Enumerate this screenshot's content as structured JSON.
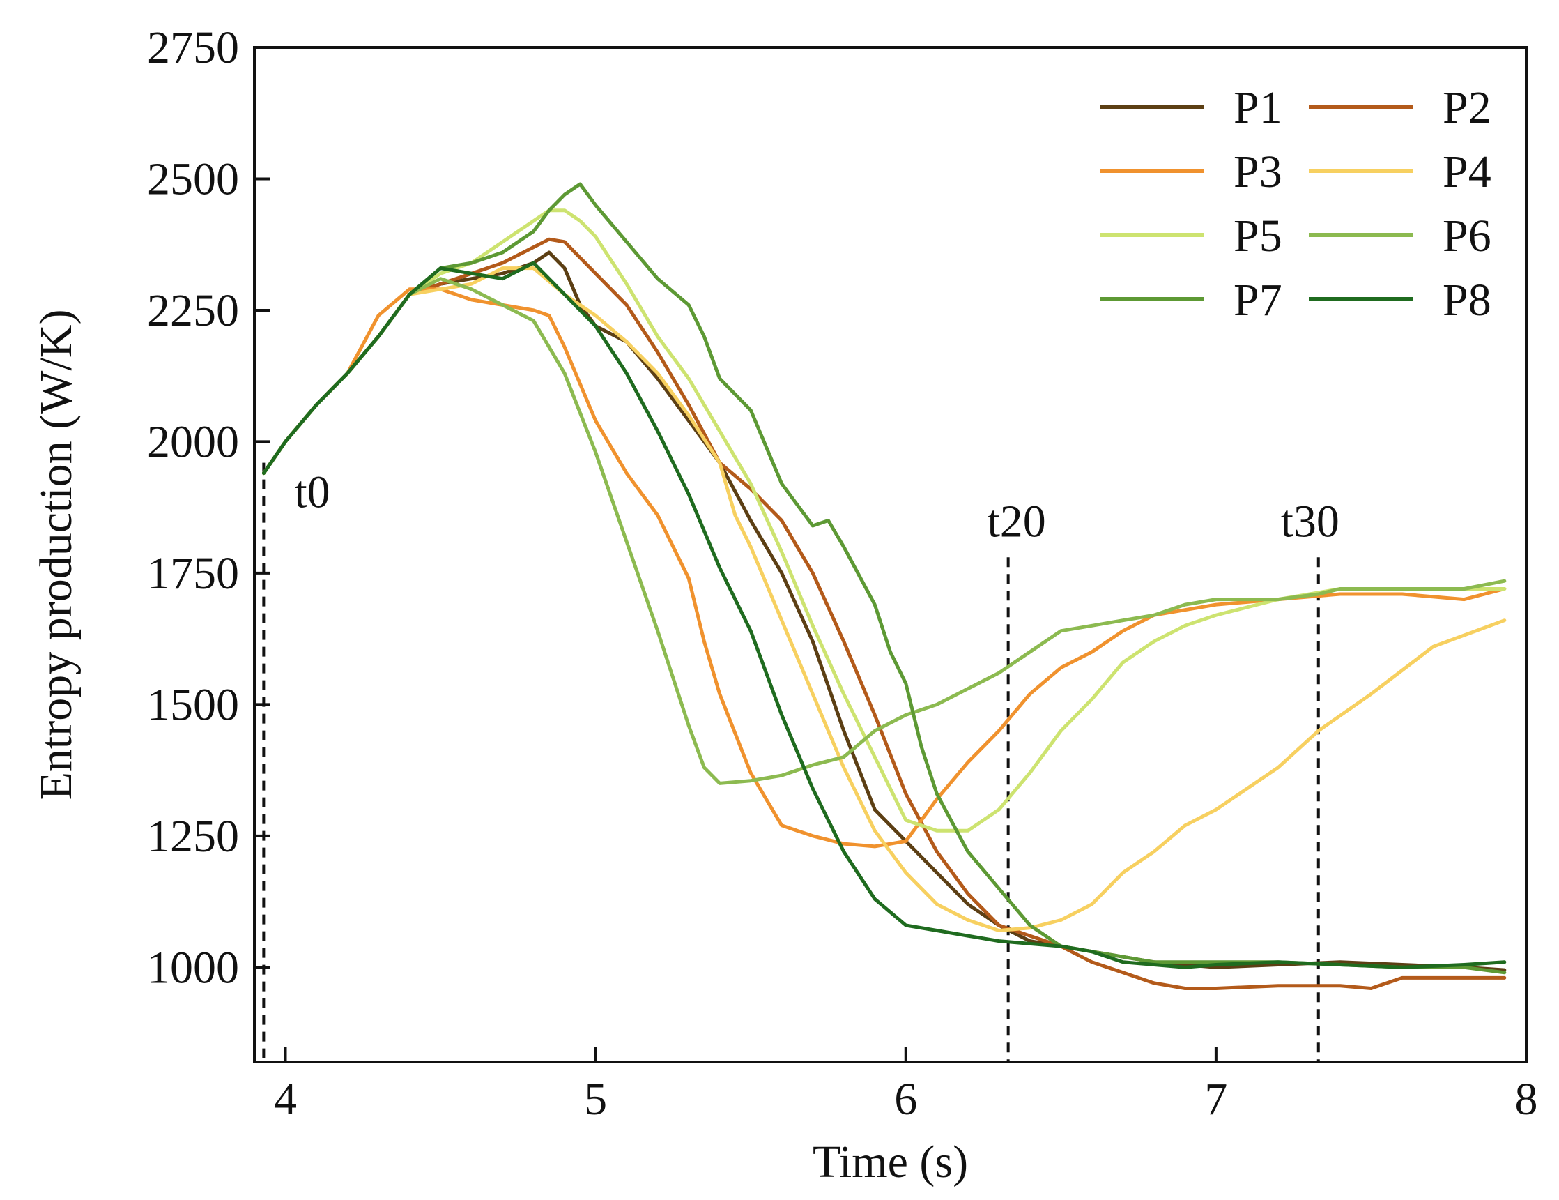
{
  "chart_data": {
    "type": "line",
    "xlabel": "Time (s)",
    "ylabel": "Entropy production (W/K)",
    "xlim": [
      3.9,
      8.0
    ],
    "ylim": [
      820,
      2750
    ],
    "xticks": [
      4,
      5,
      6,
      7,
      8
    ],
    "yticks": [
      1000,
      1250,
      1500,
      1750,
      2000,
      2250,
      2500,
      2750
    ],
    "grid": false,
    "legend_position": "top-right",
    "markers": [
      {
        "label": "t0",
        "x": 3.93
      },
      {
        "label": "t20",
        "x": 6.33
      },
      {
        "label": "t30",
        "x": 7.33
      }
    ],
    "series": [
      {
        "name": "P1",
        "color": "#5c3f14",
        "x": [
          3.93,
          4.0,
          4.1,
          4.2,
          4.3,
          4.4,
          4.5,
          4.6,
          4.7,
          4.8,
          4.85,
          4.9,
          4.95,
          5.0,
          5.1,
          5.2,
          5.3,
          5.4,
          5.5,
          5.6,
          5.7,
          5.8,
          5.9,
          6.0,
          6.1,
          6.2,
          6.3,
          6.4,
          6.5,
          6.6,
          6.7,
          6.8,
          6.9,
          7.0,
          7.2,
          7.4,
          7.6,
          7.8,
          7.93
        ],
        "y": [
          1940,
          2000,
          2070,
          2130,
          2200,
          2280,
          2300,
          2310,
          2320,
          2340,
          2360,
          2330,
          2260,
          2220,
          2190,
          2120,
          2040,
          1960,
          1850,
          1750,
          1620,
          1450,
          1300,
          1240,
          1180,
          1120,
          1080,
          1050,
          1040,
          1030,
          1020,
          1010,
          1005,
          1000,
          1005,
          1010,
          1005,
          1000,
          995
        ]
      },
      {
        "name": "P2",
        "color": "#b35a1a",
        "x": [
          3.93,
          4.0,
          4.1,
          4.2,
          4.3,
          4.4,
          4.5,
          4.6,
          4.7,
          4.8,
          4.85,
          4.9,
          5.0,
          5.1,
          5.2,
          5.3,
          5.4,
          5.5,
          5.6,
          5.7,
          5.8,
          5.9,
          6.0,
          6.1,
          6.2,
          6.3,
          6.4,
          6.5,
          6.6,
          6.7,
          6.8,
          6.9,
          7.0,
          7.2,
          7.4,
          7.5,
          7.6,
          7.8,
          7.93
        ],
        "y": [
          1940,
          2000,
          2070,
          2130,
          2200,
          2280,
          2300,
          2320,
          2340,
          2370,
          2385,
          2380,
          2320,
          2260,
          2170,
          2070,
          1960,
          1910,
          1850,
          1750,
          1620,
          1480,
          1330,
          1220,
          1140,
          1080,
          1060,
          1040,
          1010,
          990,
          970,
          960,
          960,
          965,
          965,
          960,
          980,
          980,
          980
        ]
      },
      {
        "name": "P3",
        "color": "#f0922e",
        "x": [
          3.93,
          4.0,
          4.1,
          4.2,
          4.3,
          4.4,
          4.5,
          4.6,
          4.7,
          4.8,
          4.85,
          4.9,
          5.0,
          5.1,
          5.2,
          5.3,
          5.35,
          5.4,
          5.5,
          5.6,
          5.7,
          5.8,
          5.9,
          6.0,
          6.1,
          6.2,
          6.3,
          6.4,
          6.5,
          6.6,
          6.7,
          6.8,
          6.9,
          7.0,
          7.2,
          7.4,
          7.6,
          7.8,
          7.93
        ],
        "y": [
          1940,
          2000,
          2070,
          2130,
          2240,
          2290,
          2290,
          2270,
          2260,
          2250,
          2240,
          2180,
          2040,
          1940,
          1860,
          1740,
          1620,
          1520,
          1370,
          1270,
          1250,
          1235,
          1230,
          1240,
          1320,
          1390,
          1450,
          1520,
          1570,
          1600,
          1640,
          1670,
          1680,
          1690,
          1700,
          1710,
          1710,
          1700,
          1720
        ]
      },
      {
        "name": "P4",
        "color": "#f7d060",
        "x": [
          3.93,
          4.0,
          4.1,
          4.2,
          4.3,
          4.4,
          4.5,
          4.6,
          4.7,
          4.8,
          4.9,
          5.0,
          5.1,
          5.2,
          5.3,
          5.4,
          5.45,
          5.5,
          5.6,
          5.7,
          5.8,
          5.9,
          6.0,
          6.1,
          6.2,
          6.3,
          6.4,
          6.5,
          6.6,
          6.7,
          6.8,
          6.9,
          7.0,
          7.2,
          7.33,
          7.5,
          7.7,
          7.93
        ],
        "y": [
          1940,
          2000,
          2070,
          2130,
          2200,
          2280,
          2290,
          2300,
          2330,
          2330,
          2280,
          2240,
          2190,
          2130,
          2050,
          1960,
          1860,
          1800,
          1660,
          1520,
          1380,
          1260,
          1180,
          1120,
          1090,
          1070,
          1075,
          1090,
          1120,
          1180,
          1220,
          1270,
          1300,
          1380,
          1450,
          1520,
          1610,
          1660
        ]
      },
      {
        "name": "P5",
        "color": "#cde370",
        "x": [
          3.93,
          4.0,
          4.1,
          4.2,
          4.3,
          4.4,
          4.5,
          4.6,
          4.7,
          4.8,
          4.85,
          4.9,
          4.95,
          5.0,
          5.1,
          5.2,
          5.3,
          5.4,
          5.5,
          5.6,
          5.7,
          5.8,
          5.9,
          6.0,
          6.1,
          6.2,
          6.3,
          6.4,
          6.5,
          6.6,
          6.7,
          6.8,
          6.9,
          7.0,
          7.2,
          7.4,
          7.6,
          7.8,
          7.93
        ],
        "y": [
          1940,
          2000,
          2070,
          2130,
          2200,
          2280,
          2320,
          2340,
          2380,
          2420,
          2440,
          2440,
          2420,
          2390,
          2300,
          2200,
          2120,
          2020,
          1920,
          1790,
          1650,
          1520,
          1400,
          1280,
          1260,
          1260,
          1300,
          1370,
          1450,
          1510,
          1580,
          1620,
          1650,
          1670,
          1700,
          1720,
          1720,
          1720,
          1720
        ]
      },
      {
        "name": "P6",
        "color": "#8cba50",
        "x": [
          3.93,
          4.0,
          4.1,
          4.2,
          4.3,
          4.4,
          4.5,
          4.6,
          4.7,
          4.8,
          4.9,
          5.0,
          5.1,
          5.2,
          5.3,
          5.35,
          5.4,
          5.5,
          5.6,
          5.7,
          5.8,
          5.9,
          6.0,
          6.1,
          6.2,
          6.3,
          6.4,
          6.5,
          6.6,
          6.7,
          6.8,
          6.9,
          7.0,
          7.2,
          7.33,
          7.4,
          7.6,
          7.8,
          7.93
        ],
        "y": [
          1940,
          2000,
          2070,
          2130,
          2200,
          2280,
          2310,
          2290,
          2260,
          2230,
          2130,
          1980,
          1810,
          1640,
          1460,
          1380,
          1350,
          1355,
          1365,
          1385,
          1400,
          1450,
          1480,
          1500,
          1530,
          1560,
          1600,
          1640,
          1650,
          1660,
          1670,
          1690,
          1700,
          1700,
          1710,
          1720,
          1720,
          1720,
          1735
        ]
      },
      {
        "name": "P7",
        "color": "#5d9934",
        "x": [
          3.93,
          4.0,
          4.1,
          4.2,
          4.3,
          4.4,
          4.5,
          4.6,
          4.7,
          4.8,
          4.85,
          4.9,
          4.95,
          5.0,
          5.1,
          5.2,
          5.3,
          5.35,
          5.4,
          5.5,
          5.6,
          5.7,
          5.75,
          5.8,
          5.9,
          5.95,
          6.0,
          6.05,
          6.1,
          6.2,
          6.3,
          6.4,
          6.5,
          6.6,
          6.7,
          6.8,
          6.9,
          7.0,
          7.2,
          7.4,
          7.6,
          7.8,
          7.93
        ],
        "y": [
          1940,
          2000,
          2070,
          2130,
          2200,
          2280,
          2330,
          2340,
          2360,
          2400,
          2440,
          2470,
          2490,
          2450,
          2380,
          2310,
          2260,
          2200,
          2120,
          2060,
          1920,
          1840,
          1850,
          1800,
          1690,
          1600,
          1540,
          1420,
          1330,
          1220,
          1150,
          1080,
          1040,
          1030,
          1020,
          1010,
          1010,
          1010,
          1010,
          1005,
          1000,
          1000,
          990
        ]
      },
      {
        "name": "P8",
        "color": "#1f6b1f",
        "x": [
          3.93,
          4.0,
          4.1,
          4.2,
          4.3,
          4.4,
          4.5,
          4.6,
          4.7,
          4.8,
          4.9,
          5.0,
          5.1,
          5.2,
          5.3,
          5.4,
          5.5,
          5.6,
          5.7,
          5.8,
          5.9,
          6.0,
          6.1,
          6.2,
          6.3,
          6.4,
          6.5,
          6.6,
          6.7,
          6.8,
          6.9,
          7.0,
          7.2,
          7.4,
          7.6,
          7.8,
          7.93
        ],
        "y": [
          1940,
          2000,
          2070,
          2130,
          2200,
          2280,
          2330,
          2320,
          2310,
          2340,
          2280,
          2220,
          2130,
          2020,
          1900,
          1760,
          1640,
          1480,
          1340,
          1220,
          1130,
          1080,
          1070,
          1060,
          1050,
          1045,
          1040,
          1030,
          1010,
          1005,
          1000,
          1005,
          1010,
          1005,
          1000,
          1005,
          1010
        ]
      }
    ]
  }
}
